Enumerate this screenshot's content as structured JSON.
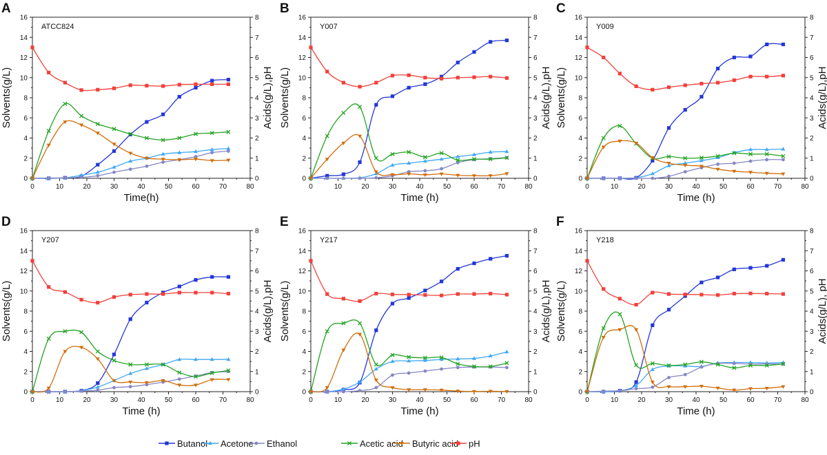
{
  "legend": [
    {
      "name": "Butanol",
      "key": "butanol"
    },
    {
      "name": "Acetone",
      "key": "acetone"
    },
    {
      "name": "Ethanol",
      "key": "ethanol"
    },
    {
      "name": "Acetic acid",
      "key": "acetic"
    },
    {
      "name": "Butyric acid",
      "key": "butyric"
    },
    {
      "name": "pH",
      "key": "ph"
    }
  ],
  "series_style": {
    "butanol": {
      "color": "#2436d8",
      "marker": "square",
      "axis": "left"
    },
    "acetone": {
      "color": "#3ea8f4",
      "marker": "triangle-up",
      "axis": "left"
    },
    "ethanol": {
      "color": "#8686c6",
      "marker": "circle",
      "axis": "left"
    },
    "acetic": {
      "color": "#22a322",
      "marker": "x",
      "axis": "right"
    },
    "butyric": {
      "color": "#d06e0c",
      "marker": "triangle-down",
      "axis": "right"
    },
    "ph": {
      "color": "#f2403a",
      "marker": "square",
      "axis": "right"
    }
  },
  "axes": {
    "xticks": [
      "0",
      "10",
      "20",
      "30",
      "40",
      "50",
      "60",
      "70",
      "80"
    ],
    "yticks_left": [
      "0",
      "2",
      "4",
      "6",
      "8",
      "10",
      "12",
      "14",
      "16"
    ],
    "yticks_right": [
      "0",
      "1",
      "2",
      "3",
      "4",
      "5",
      "6",
      "7",
      "8"
    ],
    "xlim": [
      0,
      80
    ],
    "ylim_left": [
      0,
      16
    ],
    "ylim_right": [
      0,
      8
    ],
    "ylabel_left": "Solvents(g/L)"
  },
  "chart_data": [
    {
      "type": "line",
      "panel": "A",
      "strain": "ATCC824",
      "xlabel": "Time(h)",
      "ylabel_right": "Acids(g/L),pH",
      "x": [
        0,
        6,
        12,
        18,
        24,
        30,
        36,
        42,
        48,
        54,
        60,
        66,
        72
      ],
      "series": [
        {
          "name": "Butanol",
          "key": "butanol",
          "values": [
            0,
            0,
            0.05,
            0.2,
            1.35,
            2.7,
            4.35,
            5.6,
            6.35,
            8.1,
            9.0,
            9.7,
            9.8
          ]
        },
        {
          "name": "Acetone",
          "key": "acetone",
          "values": [
            0,
            0,
            0.05,
            0.3,
            0.6,
            1.1,
            1.7,
            2.0,
            2.4,
            2.55,
            2.65,
            2.85,
            2.95
          ]
        },
        {
          "name": "Ethanol",
          "key": "ethanol",
          "values": [
            0,
            0.02,
            0.05,
            0.1,
            0.25,
            0.6,
            0.9,
            1.2,
            1.6,
            1.85,
            2.15,
            2.55,
            2.7
          ]
        },
        {
          "name": "Acetic acid",
          "key": "acetic",
          "values": [
            0,
            2.35,
            3.7,
            3.1,
            2.7,
            2.45,
            2.2,
            2.0,
            1.9,
            2.0,
            2.2,
            2.25,
            2.3
          ]
        },
        {
          "name": "Butyric acid",
          "key": "butyric",
          "values": [
            0,
            1.65,
            2.8,
            2.65,
            2.25,
            1.7,
            1.25,
            1.0,
            0.95,
            0.92,
            0.95,
            0.88,
            0.9
          ]
        },
        {
          "name": "pH",
          "key": "ph",
          "values": [
            6.5,
            5.25,
            4.75,
            4.38,
            4.4,
            4.47,
            4.62,
            4.6,
            4.58,
            4.65,
            4.67,
            4.67,
            4.67
          ]
        }
      ]
    },
    {
      "type": "line",
      "panel": "B",
      "strain": "Y007",
      "xlabel": "Time (h)",
      "ylabel_right": "Acids(g/L),pH",
      "x": [
        0,
        6,
        12,
        18,
        24,
        30,
        36,
        42,
        48,
        54,
        60,
        66,
        72
      ],
      "series": [
        {
          "name": "Butanol",
          "key": "butanol",
          "values": [
            0,
            0.25,
            0.4,
            1.6,
            7.3,
            8.15,
            9.0,
            9.35,
            10.1,
            11.5,
            12.55,
            13.55,
            13.7
          ]
        },
        {
          "name": "Acetone",
          "key": "acetone",
          "values": [
            0,
            0,
            0,
            0.05,
            0.45,
            1.3,
            1.5,
            1.7,
            1.9,
            2.15,
            2.35,
            2.6,
            2.65
          ]
        },
        {
          "name": "Ethanol",
          "key": "ethanol",
          "values": [
            0,
            0,
            0,
            0,
            0.05,
            0.25,
            0.65,
            0.75,
            0.95,
            1.55,
            1.85,
            1.95,
            2.05
          ]
        },
        {
          "name": "Acetic acid",
          "key": "acetic",
          "values": [
            0,
            2.1,
            3.25,
            3.55,
            1.0,
            1.2,
            1.3,
            1.05,
            1.25,
            0.9,
            0.95,
            0.95,
            1.02
          ]
        },
        {
          "name": "Butyric acid",
          "key": "butyric",
          "values": [
            0,
            0.95,
            1.75,
            2.1,
            0.32,
            0.18,
            0.22,
            0.17,
            0.22,
            0.15,
            0.13,
            0.13,
            0.23
          ]
        },
        {
          "name": "pH",
          "key": "ph",
          "values": [
            6.5,
            5.3,
            4.75,
            4.55,
            4.75,
            5.1,
            5.12,
            5.0,
            4.95,
            5.0,
            5.02,
            5.05,
            4.98
          ]
        }
      ]
    },
    {
      "type": "line",
      "panel": "C",
      "strain": "Y009",
      "xlabel": "Time (h)",
      "ylabel_right": "Acids(g/L),pH",
      "x": [
        0,
        6,
        12,
        18,
        24,
        30,
        36,
        42,
        48,
        54,
        60,
        66,
        72
      ],
      "series": [
        {
          "name": "Butanol",
          "key": "butanol",
          "values": [
            0,
            0,
            0,
            0.05,
            1.75,
            5.0,
            6.8,
            8.1,
            10.9,
            12.0,
            12.1,
            13.3,
            13.3
          ]
        },
        {
          "name": "Acetone",
          "key": "acetone",
          "values": [
            0,
            0,
            0,
            0.05,
            0.45,
            1.25,
            1.5,
            1.75,
            2.05,
            2.55,
            2.85,
            2.85,
            2.9
          ]
        },
        {
          "name": "Ethanol",
          "key": "ethanol",
          "values": [
            0,
            0,
            0,
            0,
            0,
            0.2,
            0.65,
            1.05,
            1.4,
            1.5,
            1.7,
            1.85,
            1.85
          ]
        },
        {
          "name": "Acetic acid",
          "key": "acetic",
          "values": [
            0,
            2.0,
            2.6,
            1.72,
            1.0,
            1.08,
            1.0,
            1.02,
            1.1,
            1.25,
            1.2,
            1.2,
            1.1
          ]
        },
        {
          "name": "Butyric acid",
          "key": "butyric",
          "values": [
            0,
            1.55,
            1.85,
            1.75,
            1.02,
            0.75,
            0.65,
            0.6,
            0.45,
            0.35,
            0.3,
            0.25,
            0.22
          ]
        },
        {
          "name": "pH",
          "key": "ph",
          "values": [
            6.5,
            6.0,
            5.2,
            4.57,
            4.4,
            4.52,
            4.62,
            4.7,
            4.75,
            4.87,
            5.05,
            5.05,
            5.1
          ]
        }
      ]
    },
    {
      "type": "line",
      "panel": "D",
      "strain": "Y207",
      "xlabel": "Time (h)",
      "ylabel_right": "Acids(g/L),pH",
      "x": [
        0,
        6,
        12,
        18,
        24,
        30,
        36,
        42,
        48,
        54,
        60,
        66,
        72
      ],
      "series": [
        {
          "name": "Butanol",
          "key": "butanol",
          "values": [
            0,
            0,
            0,
            0.1,
            0.85,
            3.7,
            7.2,
            8.85,
            9.85,
            10.45,
            11.1,
            11.4,
            11.4
          ]
        },
        {
          "name": "Acetone",
          "key": "acetone",
          "values": [
            0,
            0,
            0,
            0.1,
            0.45,
            1.1,
            1.8,
            2.3,
            2.7,
            3.2,
            3.2,
            3.2,
            3.2
          ]
        },
        {
          "name": "Ethanol",
          "key": "ethanol",
          "values": [
            0,
            0,
            0,
            0.05,
            0.15,
            0.4,
            0.5,
            0.7,
            0.95,
            1.25,
            1.55,
            1.9,
            2.0
          ]
        },
        {
          "name": "Acetic acid",
          "key": "acetic",
          "values": [
            0,
            2.63,
            3.0,
            2.95,
            2.0,
            1.55,
            1.35,
            1.35,
            1.35,
            0.95,
            0.75,
            0.93,
            1.05
          ]
        },
        {
          "name": "Butyric acid",
          "key": "butyric",
          "values": [
            0,
            0.18,
            2.0,
            2.2,
            1.63,
            0.55,
            0.48,
            0.45,
            0.55,
            0.33,
            0.33,
            0.6,
            0.6
          ]
        },
        {
          "name": "pH",
          "key": "ph",
          "values": [
            6.5,
            5.2,
            4.95,
            4.57,
            4.42,
            4.7,
            4.82,
            4.85,
            4.85,
            4.92,
            4.92,
            4.92,
            4.87
          ]
        }
      ]
    },
    {
      "type": "line",
      "panel": "E",
      "strain": "Y217",
      "xlabel": "Time (h)",
      "ylabel_right": "Acids(g/L),pH",
      "x": [
        0,
        6,
        12,
        18,
        24,
        30,
        36,
        42,
        48,
        54,
        60,
        66,
        72
      ],
      "series": [
        {
          "name": "Butanol",
          "key": "butanol",
          "values": [
            0,
            0,
            0.2,
            0.9,
            6.1,
            8.75,
            9.3,
            10.05,
            10.95,
            12.2,
            12.75,
            13.2,
            13.5
          ]
        },
        {
          "name": "Acetone",
          "key": "acetone",
          "values": [
            0,
            0,
            0.25,
            0.95,
            2.25,
            3.0,
            3.05,
            3.1,
            3.2,
            3.25,
            3.3,
            3.55,
            3.95
          ]
        },
        {
          "name": "Ethanol",
          "key": "ethanol",
          "values": [
            0,
            0,
            0,
            0.1,
            0.4,
            1.65,
            1.85,
            2.05,
            2.25,
            2.4,
            2.45,
            2.45,
            2.4
          ]
        },
        {
          "name": "Acetic acid",
          "key": "acetic",
          "values": [
            0,
            3.0,
            3.4,
            3.4,
            1.35,
            1.82,
            1.72,
            1.68,
            1.7,
            1.38,
            1.25,
            1.25,
            1.42
          ]
        },
        {
          "name": "Butyric acid",
          "key": "butyric",
          "values": [
            0,
            0.2,
            2.07,
            2.85,
            0.58,
            0.2,
            0.1,
            0.1,
            0.08,
            0.03,
            0.01,
            0.02,
            0.01
          ]
        },
        {
          "name": "pH",
          "key": "ph",
          "values": [
            6.5,
            4.85,
            4.62,
            4.5,
            4.87,
            4.83,
            4.82,
            4.8,
            4.78,
            4.85,
            4.85,
            4.87,
            4.82
          ]
        }
      ]
    },
    {
      "type": "line",
      "panel": "F",
      "strain": "Y218",
      "xlabel": "Time (h)",
      "ylabel_right": "Acids(g/L), pH",
      "x": [
        0,
        6,
        12,
        18,
        24,
        30,
        36,
        42,
        48,
        54,
        60,
        66,
        72
      ],
      "series": [
        {
          "name": "Butanol",
          "key": "butanol",
          "values": [
            0,
            0,
            0.1,
            0.95,
            6.6,
            8.15,
            9.5,
            10.85,
            11.35,
            12.15,
            12.3,
            12.5,
            13.1
          ]
        },
        {
          "name": "Acetone",
          "key": "acetone",
          "values": [
            0,
            0,
            0.1,
            0.6,
            2.2,
            2.55,
            2.55,
            2.5,
            2.85,
            2.9,
            2.9,
            2.85,
            2.9
          ]
        },
        {
          "name": "Ethanol",
          "key": "ethanol",
          "values": [
            0,
            0.05,
            0.1,
            0.3,
            0.45,
            1.4,
            1.7,
            2.45,
            2.8,
            2.8,
            2.75,
            2.75,
            2.75
          ]
        },
        {
          "name": "Acetic acid",
          "key": "acetic",
          "values": [
            0,
            3.15,
            3.85,
            1.32,
            1.4,
            1.3,
            1.35,
            1.48,
            1.35,
            1.18,
            1.3,
            1.3,
            1.38
          ]
        },
        {
          "name": "Butyric acid",
          "key": "butyric",
          "values": [
            0,
            2.7,
            3.08,
            3.08,
            0.48,
            0.25,
            0.25,
            0.27,
            0.18,
            0.08,
            0.15,
            0.17,
            0.25
          ]
        },
        {
          "name": "pH",
          "key": "ph",
          "values": [
            6.5,
            5.1,
            4.62,
            4.32,
            4.92,
            4.85,
            4.83,
            4.82,
            4.8,
            4.87,
            4.88,
            4.87,
            4.85
          ]
        }
      ]
    }
  ]
}
